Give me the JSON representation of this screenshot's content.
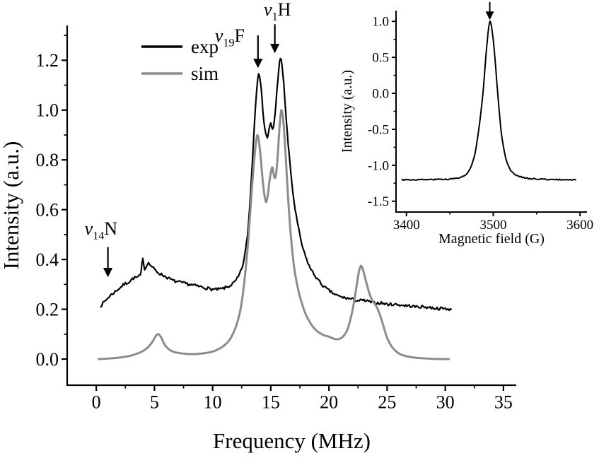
{
  "figure": {
    "background": "#ffffff"
  },
  "chart_data": [
    {
      "id": "main",
      "type": "line",
      "title": "",
      "xlabel": "Frequency (MHz)",
      "ylabel": "Intensity (a.u.)",
      "xlim": [
        -2.5,
        36.1
      ],
      "ylim": [
        -0.105,
        1.34
      ],
      "xticks": [
        0,
        5,
        10,
        15,
        20,
        25,
        30,
        35
      ],
      "xminor": [
        2.5,
        7.5,
        12.5,
        17.5,
        22.5,
        27.5,
        32.5
      ],
      "yticks": [
        0.0,
        0.2,
        0.4,
        0.6,
        0.8,
        1.0,
        1.2
      ],
      "ytick_labels": [
        "0.0",
        "0.2",
        "0.4",
        "0.6",
        "0.8",
        "1.0",
        "1.2"
      ],
      "yminor": [
        0.1,
        0.3,
        0.5,
        0.7,
        0.9,
        1.1,
        1.3
      ],
      "grid": false,
      "legend": {
        "position": "top-left",
        "entries": [
          {
            "label": "exp",
            "color": "#000000"
          },
          {
            "label": "sim",
            "color": "#8c8c8c"
          }
        ]
      },
      "series": [
        {
          "name": "exp",
          "color": "#000000",
          "width": 2.2,
          "noise": 0.006,
          "seed": 7,
          "points": [
            [
              0.4,
              0.215
            ],
            [
              0.8,
              0.235
            ],
            [
              1.2,
              0.255
            ],
            [
              1.6,
              0.27
            ],
            [
              2.0,
              0.285
            ],
            [
              2.4,
              0.3
            ],
            [
              2.8,
              0.31
            ],
            [
              3.2,
              0.325
            ],
            [
              3.6,
              0.33
            ],
            [
              3.85,
              0.345
            ],
            [
              4.0,
              0.41
            ],
            [
              4.15,
              0.36
            ],
            [
              4.4,
              0.385
            ],
            [
              4.7,
              0.375
            ],
            [
              5.0,
              0.36
            ],
            [
              5.4,
              0.345
            ],
            [
              5.8,
              0.335
            ],
            [
              6.2,
              0.325
            ],
            [
              6.6,
              0.315
            ],
            [
              7.0,
              0.31
            ],
            [
              7.5,
              0.305
            ],
            [
              8.0,
              0.3
            ],
            [
              8.5,
              0.295
            ],
            [
              9.0,
              0.29
            ],
            [
              9.5,
              0.285
            ],
            [
              10.0,
              0.28
            ],
            [
              10.5,
              0.28
            ],
            [
              11.0,
              0.285
            ],
            [
              11.5,
              0.295
            ],
            [
              12.0,
              0.315
            ],
            [
              12.4,
              0.35
            ],
            [
              12.7,
              0.4
            ],
            [
              13.0,
              0.5
            ],
            [
              13.2,
              0.62
            ],
            [
              13.4,
              0.78
            ],
            [
              13.6,
              0.95
            ],
            [
              13.8,
              1.09
            ],
            [
              13.95,
              1.15
            ],
            [
              14.1,
              1.12
            ],
            [
              14.25,
              1.04
            ],
            [
              14.4,
              0.96
            ],
            [
              14.55,
              0.91
            ],
            [
              14.7,
              0.89
            ],
            [
              14.85,
              0.92
            ],
            [
              15.0,
              0.945
            ],
            [
              15.15,
              0.92
            ],
            [
              15.3,
              0.955
            ],
            [
              15.45,
              1.03
            ],
            [
              15.6,
              1.12
            ],
            [
              15.75,
              1.19
            ],
            [
              15.9,
              1.2
            ],
            [
              16.05,
              1.14
            ],
            [
              16.2,
              1.05
            ],
            [
              16.35,
              0.95
            ],
            [
              16.5,
              0.86
            ],
            [
              16.7,
              0.76
            ],
            [
              16.9,
              0.67
            ],
            [
              17.1,
              0.6
            ],
            [
              17.4,
              0.52
            ],
            [
              17.7,
              0.455
            ],
            [
              18.0,
              0.41
            ],
            [
              18.4,
              0.365
            ],
            [
              18.8,
              0.335
            ],
            [
              19.2,
              0.31
            ],
            [
              19.6,
              0.29
            ],
            [
              20.0,
              0.275
            ],
            [
              20.5,
              0.26
            ],
            [
              21.0,
              0.25
            ],
            [
              21.5,
              0.245
            ],
            [
              22.0,
              0.24
            ],
            [
              22.5,
              0.235
            ],
            [
              23.0,
              0.235
            ],
            [
              23.5,
              0.23
            ],
            [
              24.0,
              0.225
            ],
            [
              24.5,
              0.225
            ],
            [
              25.0,
              0.22
            ],
            [
              25.5,
              0.22
            ],
            [
              26.0,
              0.218
            ],
            [
              26.5,
              0.215
            ],
            [
              27.0,
              0.213
            ],
            [
              27.5,
              0.21
            ],
            [
              28.0,
              0.21
            ],
            [
              28.5,
              0.208
            ],
            [
              29.0,
              0.205
            ],
            [
              29.5,
              0.203
            ],
            [
              30.0,
              0.202
            ],
            [
              30.5,
              0.2
            ]
          ]
        },
        {
          "name": "sim",
          "color": "#8c8c8c",
          "width": 3.0,
          "noise": 0,
          "seed": 1,
          "points": [
            [
              0.2,
              0.0
            ],
            [
              1.0,
              0.002
            ],
            [
              2.0,
              0.006
            ],
            [
              2.8,
              0.012
            ],
            [
              3.4,
              0.02
            ],
            [
              4.0,
              0.032
            ],
            [
              4.5,
              0.05
            ],
            [
              4.9,
              0.075
            ],
            [
              5.15,
              0.095
            ],
            [
              5.35,
              0.1
            ],
            [
              5.6,
              0.085
            ],
            [
              5.85,
              0.06
            ],
            [
              6.1,
              0.045
            ],
            [
              6.5,
              0.032
            ],
            [
              7.0,
              0.025
            ],
            [
              7.5,
              0.022
            ],
            [
              8.0,
              0.02
            ],
            [
              8.5,
              0.02
            ],
            [
              9.0,
              0.022
            ],
            [
              9.5,
              0.025
            ],
            [
              10.0,
              0.03
            ],
            [
              10.5,
              0.04
            ],
            [
              11.0,
              0.055
            ],
            [
              11.5,
              0.08
            ],
            [
              12.0,
              0.13
            ],
            [
              12.4,
              0.2
            ],
            [
              12.7,
              0.3
            ],
            [
              13.0,
              0.44
            ],
            [
              13.25,
              0.6
            ],
            [
              13.5,
              0.76
            ],
            [
              13.7,
              0.86
            ],
            [
              13.85,
              0.9
            ],
            [
              14.0,
              0.87
            ],
            [
              14.15,
              0.8
            ],
            [
              14.3,
              0.72
            ],
            [
              14.45,
              0.66
            ],
            [
              14.6,
              0.63
            ],
            [
              14.75,
              0.66
            ],
            [
              14.9,
              0.72
            ],
            [
              15.05,
              0.76
            ],
            [
              15.15,
              0.77
            ],
            [
              15.3,
              0.73
            ],
            [
              15.45,
              0.74
            ],
            [
              15.6,
              0.82
            ],
            [
              15.75,
              0.93
            ],
            [
              15.9,
              1.0
            ],
            [
              16.05,
              0.97
            ],
            [
              16.2,
              0.88
            ],
            [
              16.35,
              0.76
            ],
            [
              16.5,
              0.64
            ],
            [
              16.7,
              0.51
            ],
            [
              16.9,
              0.41
            ],
            [
              17.1,
              0.34
            ],
            [
              17.4,
              0.27
            ],
            [
              17.7,
              0.22
            ],
            [
              18.0,
              0.18
            ],
            [
              18.4,
              0.145
            ],
            [
              18.8,
              0.12
            ],
            [
              19.2,
              0.105
            ],
            [
              19.6,
              0.095
            ],
            [
              20.0,
              0.09
            ],
            [
              20.4,
              0.082
            ],
            [
              20.8,
              0.08
            ],
            [
              21.2,
              0.09
            ],
            [
              21.6,
              0.12
            ],
            [
              22.0,
              0.19
            ],
            [
              22.3,
              0.27
            ],
            [
              22.55,
              0.345
            ],
            [
              22.75,
              0.375
            ],
            [
              22.95,
              0.355
            ],
            [
              23.2,
              0.31
            ],
            [
              23.5,
              0.26
            ],
            [
              23.8,
              0.23
            ],
            [
              24.1,
              0.21
            ],
            [
              24.4,
              0.175
            ],
            [
              24.7,
              0.13
            ],
            [
              25.0,
              0.085
            ],
            [
              25.4,
              0.05
            ],
            [
              25.8,
              0.03
            ],
            [
              26.2,
              0.018
            ],
            [
              26.8,
              0.01
            ],
            [
              27.5,
              0.005
            ],
            [
              28.5,
              0.002
            ],
            [
              29.5,
              0.0
            ],
            [
              30.3,
              0.0
            ]
          ]
        }
      ],
      "annotations": [
        {
          "label": {
            "base": "ν",
            "sub": "14",
            "tail": "N"
          },
          "text_xy": [
            -1.0,
            0.5
          ],
          "arrow": {
            "x": 1.0,
            "y_from": 0.45,
            "y_to": 0.335
          }
        },
        {
          "label": {
            "base": "ν",
            "sub": "19",
            "tail": "F"
          },
          "text_xy": [
            10.2,
            1.275
          ],
          "arrow": {
            "x": 13.9,
            "y_from": 1.3,
            "y_to": 1.175
          }
        },
        {
          "label": {
            "base": "ν",
            "sub": "1",
            "tail": "H"
          },
          "text_xy": [
            14.4,
            1.38
          ],
          "arrow": {
            "x": 15.35,
            "y_from": 1.345,
            "y_to": 1.235
          }
        }
      ]
    },
    {
      "id": "inset",
      "type": "line",
      "title": "",
      "xlabel": "Magnetic field (G)",
      "ylabel": "Intensity (a.u.)",
      "xlim": [
        3388,
        3608
      ],
      "ylim": [
        -1.65,
        1.15
      ],
      "xticks": [
        3400,
        3500,
        3600
      ],
      "xminor": [
        3450,
        3550
      ],
      "yticks": [
        1.0,
        0.5,
        0.0,
        -0.5,
        -1.0,
        -1.5
      ],
      "ytick_labels": [
        "1.0",
        "0.5",
        "0.0",
        "-0.5",
        "-1.0",
        "-1.5"
      ],
      "yminor": [
        0.75,
        0.25,
        -0.25,
        -0.75,
        -1.25
      ],
      "grid": false,
      "series": [
        {
          "name": "epr",
          "color": "#000000",
          "width": 2.0,
          "noise": 0.008,
          "seed": 3,
          "points": [
            [
              3395,
              -1.2
            ],
            [
              3420,
              -1.2
            ],
            [
              3440,
              -1.195
            ],
            [
              3452,
              -1.19
            ],
            [
              3460,
              -1.175
            ],
            [
              3466,
              -1.15
            ],
            [
              3471,
              -1.1
            ],
            [
              3475,
              -1.0
            ],
            [
              3479,
              -0.84
            ],
            [
              3482,
              -0.62
            ],
            [
              3485,
              -0.35
            ],
            [
              3488,
              -0.02
            ],
            [
              3490,
              0.28
            ],
            [
              3492,
              0.58
            ],
            [
              3494,
              0.84
            ],
            [
              3495.5,
              0.97
            ],
            [
              3496.5,
              1.0
            ],
            [
              3498,
              0.93
            ],
            [
              3500,
              0.74
            ],
            [
              3502,
              0.48
            ],
            [
              3504,
              0.18
            ],
            [
              3506,
              -0.12
            ],
            [
              3508,
              -0.4
            ],
            [
              3510,
              -0.62
            ],
            [
              3513,
              -0.83
            ],
            [
              3516,
              -0.97
            ],
            [
              3520,
              -1.07
            ],
            [
              3524,
              -1.12
            ],
            [
              3529,
              -1.15
            ],
            [
              3535,
              -1.17
            ],
            [
              3542,
              -1.185
            ],
            [
              3550,
              -1.19
            ],
            [
              3560,
              -1.195
            ],
            [
              3575,
              -1.2
            ],
            [
              3595,
              -1.2
            ]
          ]
        }
      ],
      "annotations": [
        {
          "label": null,
          "arrow": {
            "x": 3496,
            "y_from": 1.27,
            "y_to": 1.04
          }
        }
      ]
    }
  ]
}
